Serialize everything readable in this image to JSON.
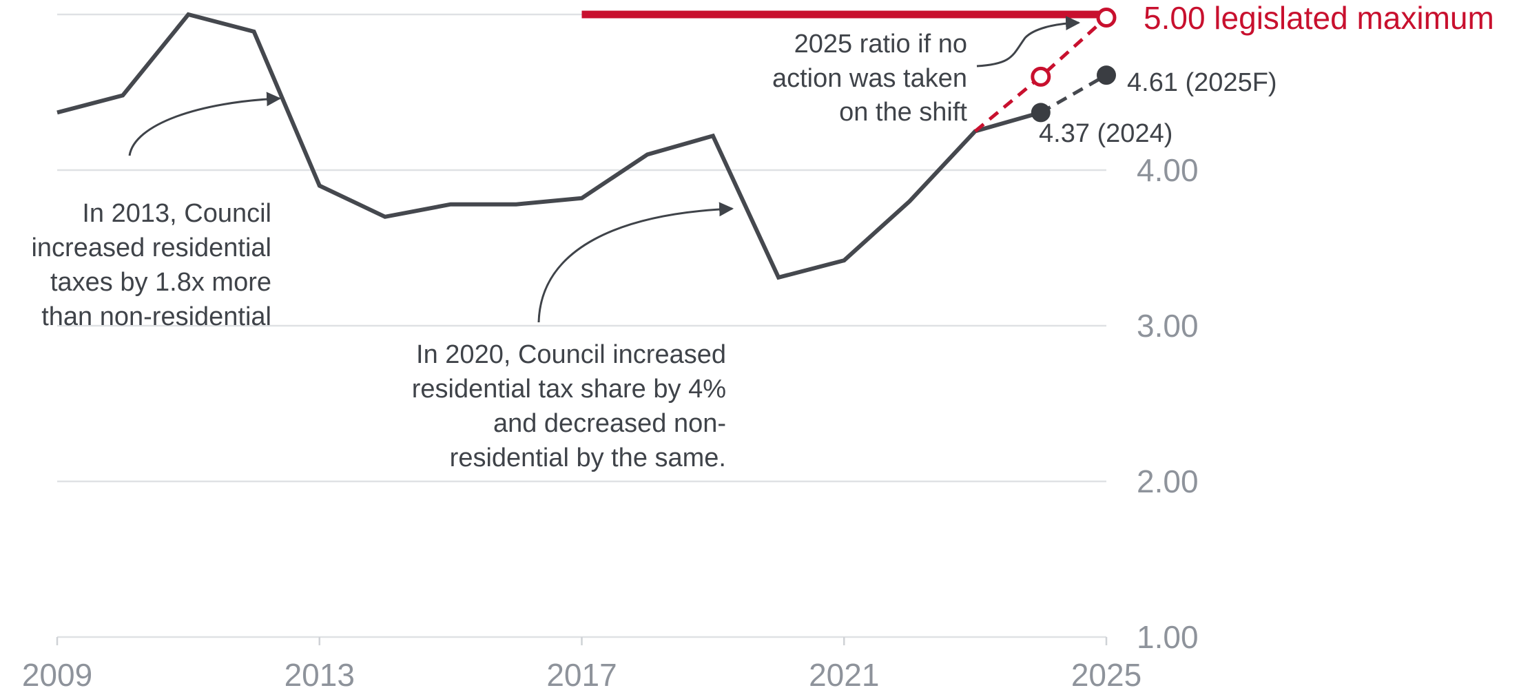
{
  "chart_data": {
    "type": "line",
    "xlim": [
      2009,
      2025
    ],
    "ylim": [
      1.0,
      5.0
    ],
    "x_ticks": [
      "2009",
      "2013",
      "2017",
      "2021",
      "2025"
    ],
    "y_ticks": [
      "1.00",
      "2.00",
      "3.00",
      "4.00"
    ],
    "grid": true,
    "y_axis_side": "right",
    "series": [
      {
        "x": [
          2009,
          2010,
          2011,
          2012,
          2013,
          2014,
          2015,
          2016,
          2017,
          2018,
          2019,
          2020,
          2021,
          2022,
          2023,
          2024
        ],
        "values": [
          4.37,
          4.48,
          5.0,
          4.89,
          3.9,
          3.7,
          3.78,
          3.78,
          3.82,
          4.1,
          4.22,
          3.31,
          3.42,
          3.8,
          4.25,
          4.37
        ],
        "color": "#45484e"
      },
      {
        "x": [
          2024,
          2025
        ],
        "values": [
          4.37,
          4.61
        ],
        "color": "#45484e",
        "dashed": true
      },
      {
        "x": [
          2023,
          2024,
          2025
        ],
        "values": [
          4.25,
          4.6,
          4.98
        ],
        "color": "#c8102e",
        "dashed": true
      }
    ],
    "max_line": {
      "value": 5.0,
      "x_start": 2017,
      "x_end": 2025,
      "label": "5.00 legislated maximum",
      "color": "#c8102e"
    },
    "point_labels": [
      {
        "x": 2024,
        "y": 4.37,
        "label": "4.37 (2024)",
        "style": "filled"
      },
      {
        "x": 2025,
        "y": 4.61,
        "label": "4.61 (2025F)",
        "style": "filled"
      },
      {
        "x": 2024,
        "y": 4.6,
        "label": "",
        "style": "open"
      },
      {
        "x": 2025,
        "y": 4.98,
        "label": "",
        "style": "open"
      }
    ],
    "annotations": [
      {
        "lines": [
          "In 2013, Council",
          "increased residential",
          "taxes by 1.8x more",
          "than non-residential"
        ]
      },
      {
        "lines": [
          "In 2020, Council increased",
          "residential tax share by 4%",
          "and decreased non-",
          "residential by the same."
        ]
      },
      {
        "lines": [
          "2025 ratio if no",
          "action was taken",
          "on the shift"
        ]
      }
    ]
  }
}
